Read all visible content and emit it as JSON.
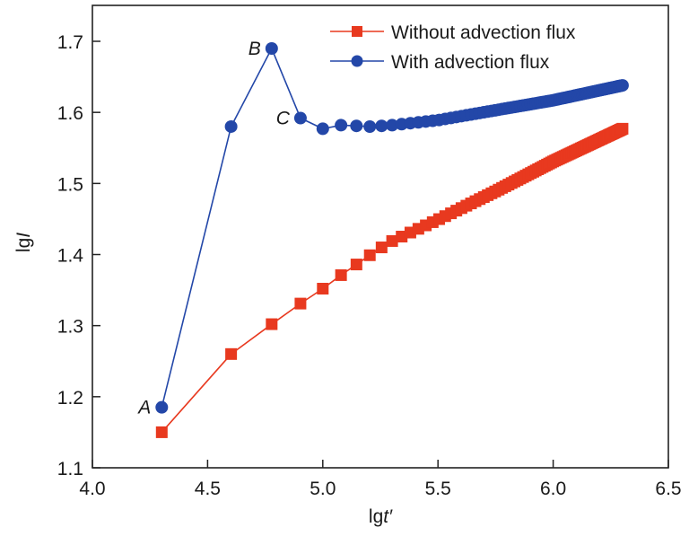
{
  "chart_data": {
    "type": "line",
    "title": "",
    "xlabel_plain": "lg",
    "xlabel_italic": "t′",
    "ylabel_plain": "lg",
    "ylabel_italic": "I",
    "xlim": [
      4.0,
      6.5
    ],
    "ylim": [
      1.1,
      1.75
    ],
    "xticks": [
      "4.0",
      "4.5",
      "5.0",
      "5.5",
      "6.0",
      "6.5"
    ],
    "xtick_values": [
      4.0,
      4.5,
      5.0,
      5.5,
      6.0,
      6.5
    ],
    "yticks": [
      "1.1",
      "1.2",
      "1.3",
      "1.4",
      "1.5",
      "1.6",
      "1.7"
    ],
    "ytick_values": [
      1.1,
      1.2,
      1.3,
      1.4,
      1.5,
      1.6,
      1.7
    ],
    "grid": false,
    "legend_position": "top-right",
    "x_rule": "lg(n × 20000), n = 1..100",
    "series": [
      {
        "name": "Without advection flux",
        "color": "#e8391f",
        "marker": "square",
        "anchors_x": [
          4.301,
          4.602,
          4.778,
          4.903,
          5.0,
          5.079,
          5.146,
          5.204,
          5.255,
          5.301,
          5.5,
          5.75,
          6.0,
          6.301
        ],
        "anchors_y": [
          1.15,
          1.26,
          1.302,
          1.331,
          1.352,
          1.371,
          1.386,
          1.399,
          1.41,
          1.419,
          1.449,
          1.489,
          1.531,
          1.577
        ]
      },
      {
        "name": "With advection flux",
        "color": "#2347a8",
        "marker": "circle",
        "anchors_x": [
          4.301,
          4.602,
          4.778,
          4.903,
          5.0,
          5.079,
          5.146,
          5.204,
          5.255,
          5.301,
          5.5,
          5.75,
          6.0,
          6.301
        ],
        "anchors_y": [
          1.185,
          1.58,
          1.69,
          1.592,
          1.577,
          1.582,
          1.581,
          1.58,
          1.581,
          1.582,
          1.589,
          1.603,
          1.617,
          1.638
        ]
      }
    ],
    "annotations": [
      {
        "label": "A",
        "series": 1,
        "x": 4.301,
        "y": 1.185
      },
      {
        "label": "B",
        "series": 1,
        "x": 4.778,
        "y": 1.69
      },
      {
        "label": "C",
        "series": 1,
        "x": 4.903,
        "y": 1.592
      }
    ]
  }
}
